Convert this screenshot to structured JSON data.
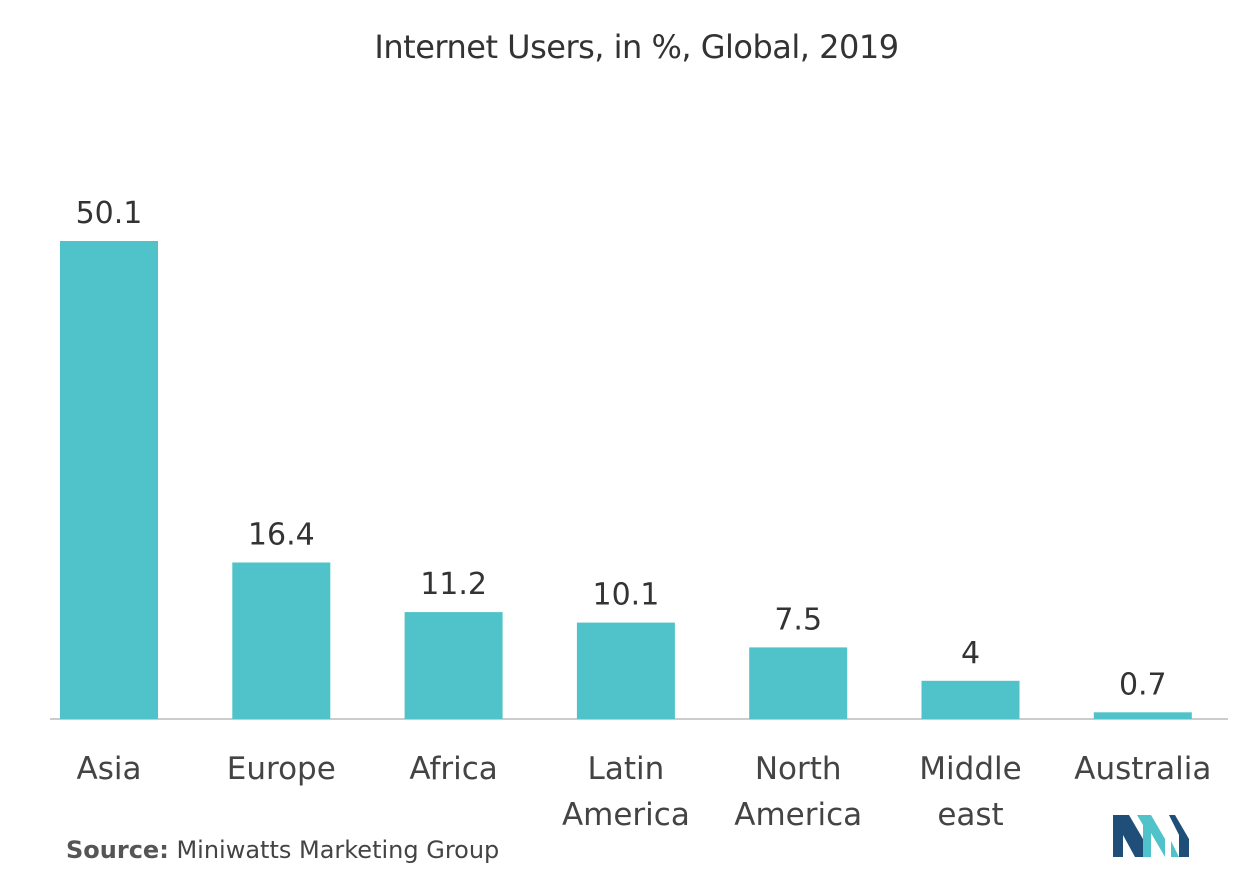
{
  "chart_data": {
    "type": "bar",
    "title": "Internet Users, in %, Global, 2019",
    "xlabel": "",
    "ylabel": "",
    "categories": [
      "Asia",
      "Europe",
      "Africa",
      "Latin America",
      "North America",
      "Middle east",
      "Australia"
    ],
    "category_lines": [
      [
        "Asia"
      ],
      [
        "Europe"
      ],
      [
        "Africa"
      ],
      [
        "Latin",
        "America"
      ],
      [
        "North",
        "America"
      ],
      [
        "Middle",
        "east"
      ],
      [
        "Australia"
      ]
    ],
    "values": [
      50.1,
      16.4,
      11.2,
      10.1,
      7.5,
      4,
      0.7
    ],
    "value_labels": [
      "50.1",
      "16.4",
      "11.2",
      "10.1",
      "7.5",
      "4",
      "0.7"
    ],
    "ylim": [
      0,
      50.1
    ],
    "grid": false,
    "bar_color": "#4fc3c9"
  },
  "source": {
    "label": "Source:",
    "text": "Miniwatts Marketing Group"
  },
  "logo": {
    "name": "mordor-intelligence-logo",
    "colors": [
      "#1f4e79",
      "#4fc3c9"
    ]
  }
}
